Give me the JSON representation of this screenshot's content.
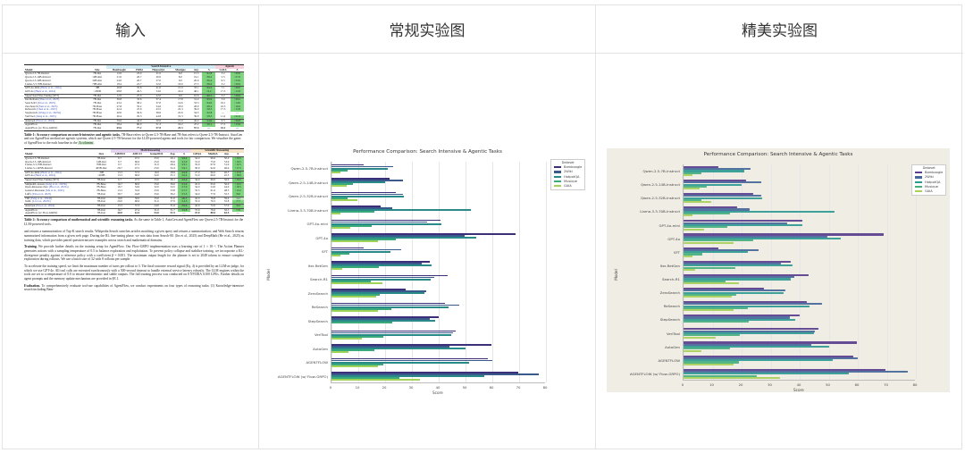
{
  "columns": [
    {
      "header": "输入"
    },
    {
      "header": "常规实验图"
    },
    {
      "header": "精美实验图"
    }
  ],
  "paper": {
    "table1": {
      "group_headers": {
        "search": "Search Intensive",
        "agentic": "Agentic"
      },
      "headers": [
        "Model",
        "Size",
        "Bamboogle",
        "2Wiki",
        "HotpotQA",
        "Musique",
        "Avg.",
        "Δ",
        "GAIA",
        "Δ"
      ],
      "groups": [
        [
          [
            "Qwen-2.5-7B-Instruct",
            "7B-Inst",
            "12.0",
            "23.0",
            "21.0",
            "6.0",
            "15.5",
            "↑41.8",
            "3.2",
            "↑29.9"
          ],
          [
            "Qwen-2.5-14B-Instruct",
            "14B-Inst",
            "21.6",
            "26.7",
            "20.0",
            "8.0",
            "19.1",
            "↑38.2",
            "5.5",
            "↑27.6"
          ],
          [
            "Qwen-2.5-32B-Instruct",
            "32B-Inst",
            "24.0",
            "26.7",
            "27.0",
            "6.0",
            "20.9",
            "↑36.4",
            "9.5",
            "↑23.6"
          ],
          [
            "Llama-3.3-70B-Instruct",
            "70B-Inst",
            "18.4",
            "22.7",
            "52.0",
            "16.0",
            "27.3",
            "↑30.0",
            "3.2",
            "↑29.9"
          ]
        ],
        [
          [
            "GPT-4o-mini (Hurst et al., 2024)",
            "~8B",
            "40.8",
            "35.6",
            "41.0",
            "15.0",
            "33.1",
            "↑24.2",
            "7.1",
            "↑26.0"
          ],
          [
            "GPT-4o (Hurst et al., 2024)",
            "~200B",
            "68.8",
            "49.5",
            "54.0",
            "24.0",
            "48.1",
            "↑9.2",
            "17.3",
            "↑15.8"
          ]
        ],
        [
          [
            "Supervised Fine-Tuning (SFT)",
            "7B-Inst",
            "12.0",
            "25.9",
            "22.0",
            "6.6",
            "16.6",
            "↑40.7",
            "3.2",
            "↑29.9"
          ]
        ],
        [
          [
            "Iter-RetGen (Shao et al., 2023)",
            "7B-Inst",
            "36.8",
            "33.6",
            "37.4",
            "17.8",
            "31.4",
            "↑25.9",
            "3.9",
            "↑29.2"
          ],
          [
            "Search-R1 (Jin et al., 2025)",
            "7B-Inst",
            "43.2",
            "38.2",
            "37.0",
            "14.6",
            "33.3",
            "↑24.0",
            "19.1",
            "↑14.0"
          ],
          [
            "ZeroSearch (Sun et al., 2025)",
            "7B-Base",
            "27.8",
            "35.2",
            "34.6",
            "18.0",
            "28.9",
            "↑28.4",
            "16.5",
            "↑16.6"
          ],
          [
            "ReSearch (Chen et al., 2025)",
            "7B-Base",
            "42.4",
            "47.6",
            "43.5",
            "22.3",
            "39.0",
            "↑18.3",
            "17.3",
            "↑15.8"
          ],
          [
            "StepSearch (Wang et al., 2025d)",
            "7B-Base",
            "40.0",
            "36.6",
            "38.6",
            "22.6",
            "34.5",
            "↑22.8",
            "—",
            "—"
          ],
          [
            "VerlTool (Jiang et al., 2025)",
            "7B-Base",
            "46.4",
            "45.3",
            "44.8",
            "19.3",
            "39.0",
            "↑18.3",
            "11.2",
            "↑21.9"
          ]
        ],
        [
          [
            "AutoGen (Wu et al., 2024)",
            "7B-Inst",
            "59.6",
            "44.0",
            "50.0",
            "15.9",
            "42.4",
            "↑14.9",
            "6.3",
            "↑26.8"
          ]
        ],
        [
          [
            "AgentFlow",
            "7B-Inst",
            "58.4",
            "60.0",
            "51.3",
            "19.2",
            "47.2",
            "↑10.1",
            "17.2",
            "↑15.9"
          ],
          [
            "AgentFlow (w/ Flow-GRPO)",
            "7B-Inst",
            "69.6",
            "77.2",
            "57.0",
            "25.3",
            "57.3",
            "—",
            "33.1",
            "—"
          ]
        ]
      ],
      "caption_label": "Table 1:",
      "caption_bold": "Accuracy comparison on search-intensive and agentic tasks.",
      "caption_text": "7B-Base refers to Qwen-2.5-7B-Base and 7B-Inst refers to Qwen-2.5-7B-Instruct. AutoGen and our AgentFlow method are agentic systems, which use Qwen-2.5-7B-Instruct for the LLM-powered agents and tools for fair comparison. We visualize the gains of AgentFlow to the each baseline in the",
      "caption_hl": "Δ columns",
      "caption_end": "."
    },
    "table2": {
      "group_headers": {
        "math": "Math Reasoning",
        "sci": "Scientific Reasoning"
      },
      "headers": [
        "Model",
        "Size",
        "AIME24",
        "AMC23",
        "GameOf24",
        "Avg.",
        "Δ",
        "GPQA",
        "MedQA",
        "Avg.",
        "Δ"
      ],
      "groups": [
        [
          [
            "Qwen-2.5-7B-Instruct",
            "7B-Inst",
            "6.7",
            "47.5",
            "33.0",
            "29.1",
            "↑22.4",
            "34.0",
            "66.0",
            "50.0",
            "↑13.5"
          ],
          [
            "Qwen-2.5-14B-Instruct",
            "14B-Inst",
            "6.7",
            "60.0",
            "25.0",
            "30.6",
            "↑21.0",
            "31.0",
            "75.0",
            "53.0",
            "↑10.5"
          ],
          [
            "Llama-3.3-70B-Instruct",
            "70B-Inst",
            "6.7",
            "47.5",
            "31.0",
            "28.4",
            "↑23.1",
            "35.0",
            "67.0",
            "51.0",
            "↑12.5"
          ],
          [
            "Llama-3.1-405B-Instruct",
            "405B-Inst",
            "26.7",
            "47.5",
            "23.0",
            "32.4",
            "↑19.1",
            "30.0",
            "62.0",
            "46.0",
            "↑17.5"
          ]
        ],
        [
          [
            "GPT-4o-mini (Hurst et al., 2024)",
            "~8B",
            "13.3",
            "57.5",
            "16.0",
            "28.9",
            "↑22.6",
            "27.0",
            "66.0",
            "46.5",
            "↑17.0"
          ],
          [
            "GPT-4o (Hurst et al., 2024)",
            "~200B",
            "13.3",
            "60.0",
            "32.0",
            "35.1",
            "↑16.4",
            "31.0",
            "60.0",
            "45.5",
            "↑18.0"
          ]
        ],
        [
          [
            "Supervised Fine-Tuning (SFT)",
            "7B-Inst",
            "6.7",
            "47.5",
            "33.0",
            "29.1",
            "↑22.4",
            "34.0",
            "66.0",
            "50.0",
            "↑13.5"
          ]
        ],
        [
          [
            "SimpleRL-reason (Zeng et al., 2025b)",
            "7B-Base",
            "16.7",
            "60.0",
            "33.0",
            "36.6",
            "↑15.0",
            "45.0",
            "65.0",
            "50.0",
            "↑13.5"
          ],
          [
            "Open-Reasoner-Zero (Hu et al., 2025a)",
            "7B-Base",
            "16.7",
            "54.9",
            "32.0",
            "34.5",
            "↑17.0",
            "34.0",
            "54.0",
            "44.0",
            "↑19.5"
          ],
          [
            "General-Reasoner (Ma et al., 2025)",
            "7B-Base",
            "13.3",
            "55.0",
            "33.0",
            "33.8",
            "↑17.7",
            "35.5",
            "61.0",
            "48.3",
            "↑15.2"
          ],
          [
            "Luffy (Yan et al., 2025)",
            "7B-Inst",
            "30.7",
            "44.8",
            "33.0",
            "36.2",
            "↑15.3",
            "34.0",
            "77.0",
            "55.5",
            "↑8.0"
          ]
        ],
        [
          [
            "TIR (Yang et al., 2024b)",
            "7B-Inst",
            "10.0",
            "50.0",
            "33.0",
            "31.0",
            "↑20.5",
            "42.0",
            "76.8",
            "59.4",
            "↑4.1"
          ],
          [
            "ToRL (Li et al., 2025b)",
            "7B-Inst",
            "20.0",
            "60.0",
            "31.0",
            "37.0",
            "↑14.5",
            "35.0",
            "76.5",
            "55.8",
            "↑7.7"
          ]
        ],
        [
          [
            "AutoGen (Wu et al., 2024)",
            "7B-Inst",
            "13.3",
            "57.5",
            "24.0",
            "31.6",
            "↑19.9",
            "42.0",
            "72.0",
            "57.0",
            "↑6.5"
          ]
        ],
        [
          [
            "AgentFlow",
            "7B-Inst",
            "16.7",
            "47.4",
            "31.0",
            "31.7",
            "↑19.8",
            "37.0",
            "76.0",
            "56.5",
            "↑7.0"
          ],
          [
            "AgentFlow (w/ Flow-GRPO)",
            "7B-Inst",
            "40.0",
            "61.5",
            "53.0",
            "51.5",
            "—",
            "47.0",
            "80.0",
            "63.5",
            "—"
          ]
        ]
      ],
      "caption_label": "Table 2:",
      "caption_bold": "Accuracy comparison of mathematical and scientific reasoning tasks.",
      "caption_text": "As the same in Table 1, AutoGen and AgentFlow use Qwen-2.5-7B-Instruct for the LLM-powered tools."
    },
    "paragraphs": [
      {
        "lead": "",
        "text": "and returns a summarization of Top-K search results. Wikipedia Search searches articles matching a given query and returns a summarization; and Web Search returns summarized information from a given web page. During the RL fine-tuning phase, we mix data from Search-R1 (Jin et al., 2025) and DeepMath (He et al., 2025) as training data, which provides paired question-answer examples across search and mathematical domains."
      },
      {
        "lead": "Training.",
        "text": "We provide further details on the training setup for AgentFlow. Our Flow-GRPO implementation uses a learning rate of 1 × 10⁻⁶. The Action Planner generates actions with a sampling temperature of 0.5 to balance exploration and exploitation. To prevent policy collapse and stabilize training, we incorporate a KL-divergence penalty against a reference policy with a coefficient β = 0.001. The maximum output length for the planner is set to 2048 tokens to ensure complete exploration during rollouts. We use a batch size of 32 with 8 rollouts per sample."
      },
      {
        "lead": "",
        "text": "To accelerate the training speed, we limit the maximum number of turns per rollout to 3. The final-outcome reward signal (Eq. 4) is provided by an LLM-as-judge, for which we use GPT-4o. All tool calls are executed synchronously with a 500-second timeout to handle external service latency robustly. The LLM engines within the tools are set to a temperature of 0.0 to ensure deterministic and stable outputs. The full training process was conducted on 8 NVIDIA A100 GPUs. Further details on agent prompts and the memory update mechanism are provided in §E.1."
      },
      {
        "lead": "Evaluation.",
        "text": "To comprehensively evaluate tool-use capabilities of AgentFlow, we conduct experiments on four types of reasoning tasks: (1) Knowledge-intensive search including Bam-"
      }
    ]
  },
  "chart_data": [
    {
      "type": "bar",
      "orientation": "horizontal",
      "style": "regular",
      "title": "Performance Comparison: Search Intensive & Agentic Tasks",
      "xlabel": "Score",
      "ylabel": "Model",
      "xlim": [
        0,
        80
      ],
      "xticks": [
        "0",
        "10",
        "20",
        "30",
        "40",
        "50",
        "60",
        "70",
        "80"
      ],
      "grid": true,
      "legend_title": "Dataset",
      "legend_position": "upper right outside",
      "categories": [
        "Qwen-2.5-7B-Instruct",
        "Qwen-2.5-14B-Instruct",
        "Qwen-2.5-32B-Instruct",
        "Llama-3.3-70B-Instruct",
        "GPT-4o-mini",
        "GPT-4o",
        "SFT",
        "Iter-RetGen",
        "Search-R1",
        "ZeroSearch",
        "ReSearch",
        "StepSearch",
        "VerlTool",
        "AutoGen",
        "AGENTFLOW",
        "AGENTFLOW (w/ Flow-GRPO)"
      ],
      "series": [
        {
          "name": "Bamboogle",
          "color": "#3b2f7a",
          "values": [
            12.0,
            21.6,
            24.0,
            18.4,
            40.8,
            68.8,
            12.0,
            36.8,
            43.2,
            27.8,
            42.4,
            40.0,
            46.4,
            59.6,
            58.4,
            69.6
          ]
        },
        {
          "name": "2Wiki",
          "color": "#3a5a8c",
          "values": [
            23.0,
            26.7,
            26.7,
            22.7,
            35.6,
            49.5,
            25.9,
            33.6,
            38.2,
            35.2,
            47.6,
            36.6,
            45.3,
            44.0,
            60.0,
            77.2
          ]
        },
        {
          "name": "HotpotQA",
          "color": "#2a8a8a",
          "values": [
            21.0,
            20.0,
            27.0,
            52.0,
            41.0,
            54.0,
            22.0,
            37.4,
            37.0,
            34.6,
            43.5,
            38.6,
            44.8,
            50.0,
            51.3,
            57.0
          ]
        },
        {
          "name": "Musique",
          "color": "#3aaa7a",
          "values": [
            6.0,
            8.0,
            6.0,
            16.0,
            15.0,
            24.0,
            6.6,
            17.8,
            14.6,
            18.0,
            22.3,
            22.6,
            19.3,
            15.9,
            19.2,
            25.3
          ]
        },
        {
          "name": "GAIA",
          "color": "#9fd35a",
          "values": [
            3.2,
            5.5,
            9.5,
            3.2,
            7.1,
            17.3,
            3.2,
            3.9,
            19.1,
            16.5,
            17.3,
            0,
            11.2,
            6.3,
            17.2,
            33.1
          ]
        }
      ]
    },
    {
      "type": "bar",
      "orientation": "horizontal",
      "style": "fancy (hand-drawn texture, beige background)",
      "title": "Performance Comparison: Search Intensive & Agentic Tasks",
      "xlabel": "Score",
      "ylabel": "Model",
      "xlim": [
        0,
        80
      ],
      "xticks": [
        "0",
        "10",
        "20",
        "30",
        "40",
        "50",
        "60",
        "70",
        "80"
      ],
      "grid": true,
      "legend_title": "Dataset",
      "legend_position": "upper right outside",
      "categories": [
        "Qwen-2.5-7B-Instruct",
        "Qwen-2.5-14B-Instruct",
        "Qwen-2.5-32B-Instruct",
        "Llama-3.3-70B-Instruct",
        "GPT-4o-mini",
        "GPT-4o",
        "SFT",
        "Iter-RetGen",
        "Search-R1",
        "ZeroSearch",
        "ReSearch",
        "StepSearch",
        "VerlTool",
        "AutoGen",
        "AGENTFLOW",
        "AGENTFLOW (w/ Flow-GRPO)"
      ],
      "series": [
        {
          "name": "Bamboogle",
          "color": "#5a3e8e",
          "values": [
            12.0,
            21.6,
            24.0,
            18.4,
            40.8,
            68.8,
            12.0,
            36.8,
            43.2,
            27.8,
            42.4,
            40.0,
            46.4,
            59.6,
            58.4,
            69.6
          ]
        },
        {
          "name": "2Wiki",
          "color": "#46679a",
          "values": [
            23.0,
            26.7,
            26.7,
            22.7,
            35.6,
            49.5,
            25.9,
            33.6,
            38.2,
            35.2,
            47.6,
            36.6,
            45.3,
            44.0,
            60.0,
            77.2
          ]
        },
        {
          "name": "HotpotQA",
          "color": "#2f9a92",
          "values": [
            21.0,
            20.0,
            27.0,
            52.0,
            41.0,
            54.0,
            22.0,
            37.4,
            37.0,
            34.6,
            43.5,
            38.6,
            44.8,
            50.0,
            51.3,
            57.0
          ]
        },
        {
          "name": "Musique",
          "color": "#45b07e",
          "values": [
            6.0,
            8.0,
            6.0,
            16.0,
            15.0,
            24.0,
            6.6,
            17.8,
            14.6,
            18.0,
            22.3,
            22.6,
            19.3,
            15.9,
            19.2,
            25.3
          ]
        },
        {
          "name": "GAIA",
          "color": "#a8d05a",
          "values": [
            3.2,
            5.5,
            9.5,
            3.2,
            7.1,
            17.3,
            3.2,
            3.9,
            19.1,
            16.5,
            17.3,
            0,
            11.2,
            6.3,
            17.2,
            33.1
          ]
        }
      ]
    }
  ]
}
